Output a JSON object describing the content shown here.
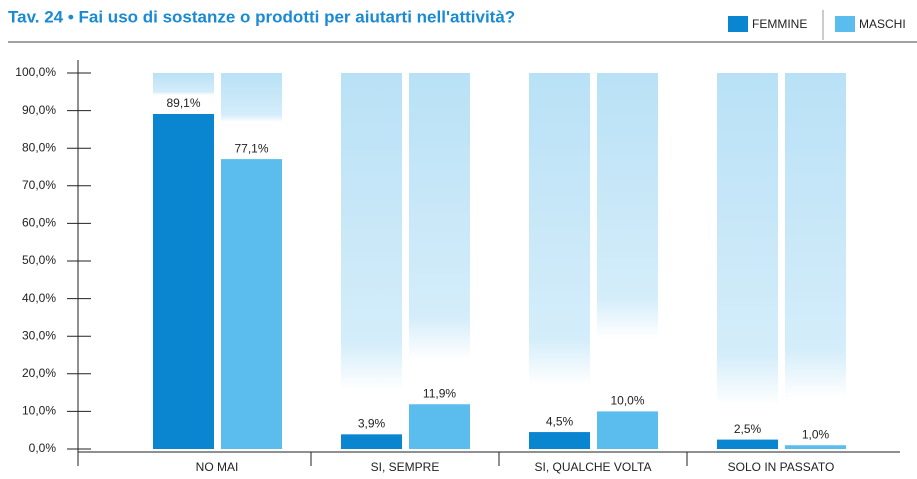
{
  "chart_data": {
    "type": "bar",
    "title": "Tav. 24 • Fai uso di sostanze o prodotti per aiutarti nell'attività?",
    "categories": [
      "NO MAI",
      "SI, SEMPRE",
      "SI, QUALCHE VOLTA",
      "SOLO IN PASSATO"
    ],
    "series": [
      {
        "name": "FEMMINE",
        "color": "#0a85d0",
        "values": [
          89.1,
          3.9,
          4.5,
          2.5
        ],
        "value_labels": [
          "89,1%",
          "3,9%",
          "4,5%",
          "2,5%"
        ]
      },
      {
        "name": "MASCHI",
        "color": "#5bbcee",
        "values": [
          77.1,
          11.9,
          10.0,
          1.0
        ],
        "value_labels": [
          "77,1%",
          "11,9%",
          "10,0%",
          "1,0%"
        ]
      }
    ],
    "ylim": [
      0,
      100
    ],
    "yticks": [
      {
        "value": 0,
        "label": "0,0%"
      },
      {
        "value": 10,
        "label": "10,0%"
      },
      {
        "value": 20,
        "label": "20,0%"
      },
      {
        "value": 30,
        "label": "30,0%"
      },
      {
        "value": 40,
        "label": "40,0%"
      },
      {
        "value": 50,
        "label": "50,0%"
      },
      {
        "value": 60,
        "label": "60,0%"
      },
      {
        "value": 70,
        "label": "70,0%"
      },
      {
        "value": 80,
        "label": "80,0%"
      },
      {
        "value": 90,
        "label": "90,0%"
      },
      {
        "value": 100,
        "label": "100,0%"
      }
    ]
  }
}
